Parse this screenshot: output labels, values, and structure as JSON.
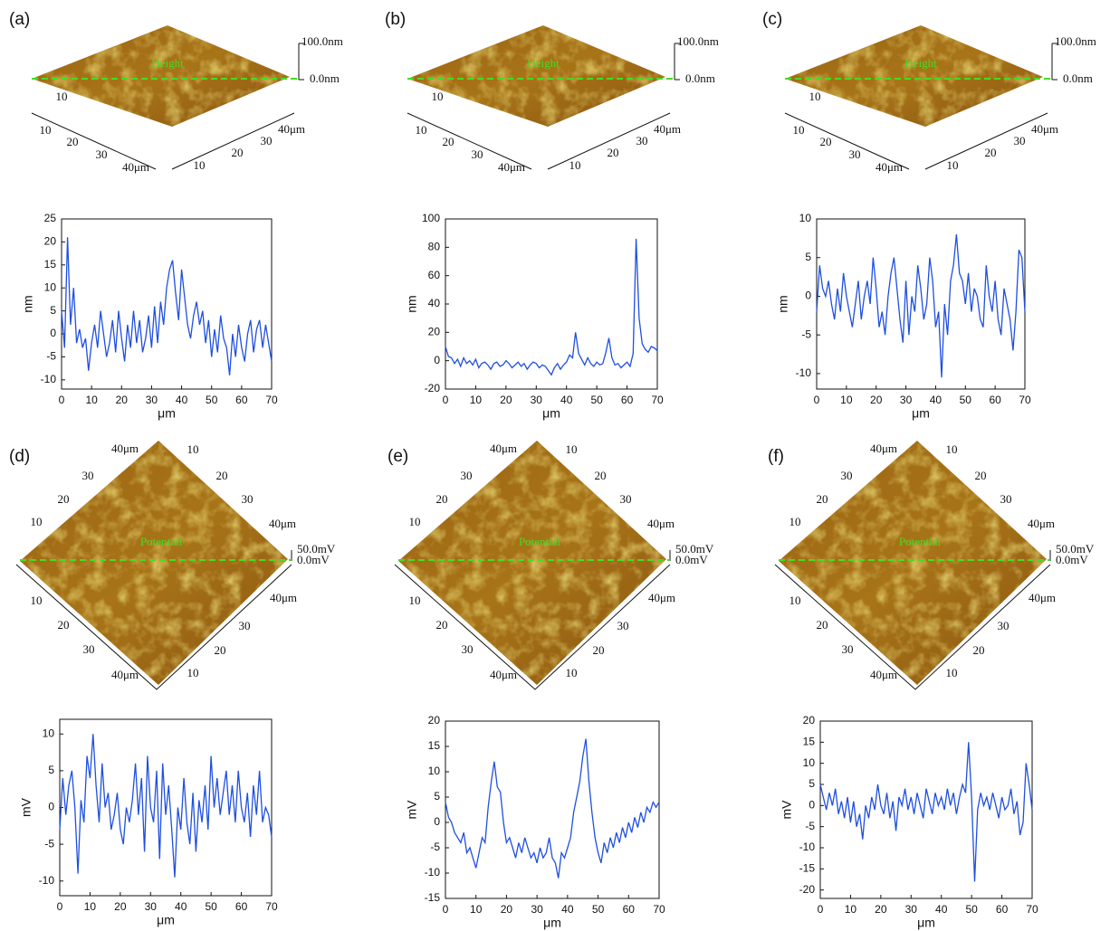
{
  "surfaces": [
    {
      "label": "(a)",
      "quantity": "Height",
      "scale_top": "100.0nm",
      "scale_bottom": "0.0nm",
      "ticks": [
        "10",
        "20",
        "30",
        "40μm"
      ]
    },
    {
      "label": "(b)",
      "quantity": "Height",
      "scale_top": "100.0nm",
      "scale_bottom": "0.0nm",
      "ticks": [
        "10",
        "20",
        "30",
        "40μm"
      ]
    },
    {
      "label": "(c)",
      "quantity": "Height",
      "scale_top": "100.0nm",
      "scale_bottom": "0.0nm",
      "ticks": [
        "10",
        "20",
        "30",
        "40μm"
      ]
    },
    {
      "label": "(d)",
      "quantity": "Potential",
      "scale_top": "50.0mV",
      "scale_bottom": "0.0mV",
      "ticks": [
        "10",
        "20",
        "30",
        "40μm"
      ]
    },
    {
      "label": "(e)",
      "quantity": "Potential",
      "scale_top": "50.0mV",
      "scale_bottom": "0.0mV",
      "ticks": [
        "10",
        "20",
        "30",
        "40μm"
      ]
    },
    {
      "label": "(f)",
      "quantity": "Potential",
      "scale_top": "50.0mV",
      "scale_bottom": "0.0mV",
      "ticks": [
        "10",
        "20",
        "30",
        "40μm"
      ]
    }
  ],
  "chart_data": [
    {
      "type": "line",
      "xlabel": "μm",
      "ylabel": "nm",
      "xlim": [
        0,
        70
      ],
      "xticks": [
        0,
        10,
        20,
        30,
        40,
        50,
        60,
        70
      ],
      "ylim": [
        -12,
        25
      ],
      "yticks": [
        -10,
        -5,
        0,
        5,
        10,
        15,
        20,
        25
      ],
      "x": [
        0,
        1,
        2,
        3,
        4,
        5,
        6,
        7,
        8,
        9,
        10,
        11,
        12,
        13,
        14,
        15,
        16,
        17,
        18,
        19,
        20,
        21,
        22,
        23,
        24,
        25,
        26,
        27,
        28,
        29,
        30,
        31,
        32,
        33,
        34,
        35,
        36,
        37,
        38,
        39,
        40,
        41,
        42,
        43,
        44,
        45,
        46,
        47,
        48,
        49,
        50,
        51,
        52,
        53,
        54,
        55,
        56,
        57,
        58,
        59,
        60,
        61,
        62,
        63,
        64,
        65,
        66,
        67,
        68,
        69,
        70
      ],
      "series": [
        {
          "color": "#1f4fe0",
          "values": [
            5,
            -3,
            21,
            2,
            10,
            -2,
            1,
            -3,
            -1,
            -8,
            -2,
            2,
            -3,
            5,
            0,
            -5,
            -2,
            3,
            -4,
            5,
            -1,
            -6,
            2,
            -3,
            5,
            -2,
            3,
            -4,
            -1,
            4,
            -3,
            6,
            -2,
            7,
            2,
            10,
            14,
            16,
            9,
            3,
            14,
            8,
            2,
            -1,
            4,
            7,
            2,
            5,
            -2,
            3,
            -5,
            1,
            -4,
            4,
            -1,
            -3,
            -9,
            0,
            -5,
            2,
            -3,
            -6,
            0,
            3,
            -4,
            1,
            3,
            -3,
            2,
            -2,
            -6
          ]
        }
      ]
    },
    {
      "type": "line",
      "xlabel": "μm",
      "ylabel": "nm",
      "xlim": [
        0,
        70
      ],
      "xticks": [
        0,
        10,
        20,
        30,
        40,
        50,
        60,
        70
      ],
      "ylim": [
        -20,
        100
      ],
      "yticks": [
        -20,
        0,
        20,
        40,
        60,
        80,
        100
      ],
      "x": [
        0,
        1,
        2,
        3,
        4,
        5,
        6,
        7,
        8,
        9,
        10,
        11,
        12,
        13,
        14,
        15,
        16,
        17,
        18,
        19,
        20,
        21,
        22,
        23,
        24,
        25,
        26,
        27,
        28,
        29,
        30,
        31,
        32,
        33,
        34,
        35,
        36,
        37,
        38,
        39,
        40,
        41,
        42,
        43,
        44,
        45,
        46,
        47,
        48,
        49,
        50,
        51,
        52,
        53,
        54,
        55,
        56,
        57,
        58,
        59,
        60,
        61,
        62,
        63,
        64,
        65,
        66,
        67,
        68,
        69,
        70
      ],
      "series": [
        {
          "color": "#1f4fe0",
          "values": [
            10,
            3,
            2,
            -2,
            1,
            -4,
            2,
            -2,
            0,
            -3,
            1,
            -5,
            -2,
            -1,
            -3,
            -6,
            -2,
            -1,
            -4,
            -3,
            0,
            -2,
            -5,
            -3,
            -1,
            -4,
            -2,
            -6,
            -3,
            -1,
            -2,
            -5,
            -3,
            -4,
            -7,
            -10,
            -5,
            -2,
            -6,
            -3,
            -1,
            4,
            2,
            20,
            5,
            1,
            -3,
            2,
            -2,
            -4,
            -1,
            -3,
            -2,
            6,
            16,
            2,
            -3,
            -2,
            -5,
            -3,
            -1,
            -4,
            5,
            86,
            30,
            12,
            8,
            6,
            10,
            9,
            7
          ]
        }
      ]
    },
    {
      "type": "line",
      "xlabel": "μm",
      "ylabel": "nm",
      "xlim": [
        0,
        70
      ],
      "xticks": [
        0,
        10,
        20,
        30,
        40,
        50,
        60,
        70
      ],
      "ylim": [
        -12,
        10
      ],
      "yticks": [
        -10,
        -5,
        0,
        5,
        10
      ],
      "x": [
        0,
        1,
        2,
        3,
        4,
        5,
        6,
        7,
        8,
        9,
        10,
        11,
        12,
        13,
        14,
        15,
        16,
        17,
        18,
        19,
        20,
        21,
        22,
        23,
        24,
        25,
        26,
        27,
        28,
        29,
        30,
        31,
        32,
        33,
        34,
        35,
        36,
        37,
        38,
        39,
        40,
        41,
        42,
        43,
        44,
        45,
        46,
        47,
        48,
        49,
        50,
        51,
        52,
        53,
        54,
        55,
        56,
        57,
        58,
        59,
        60,
        61,
        62,
        63,
        64,
        65,
        66,
        67,
        68,
        69,
        70
      ],
      "series": [
        {
          "color": "#1f4fe0",
          "values": [
            -2,
            4,
            1,
            0,
            2,
            -1,
            -3,
            1,
            -2,
            3,
            0,
            -2,
            -4,
            -1,
            2,
            -3,
            0,
            2,
            -1,
            5,
            1,
            -4,
            -2,
            -5,
            0,
            3,
            5,
            1,
            -3,
            -6,
            2,
            -5,
            0,
            -2,
            4,
            1,
            -3,
            -1,
            5,
            2,
            -4,
            -2,
            -10.5,
            -1,
            -5,
            2,
            4,
            8,
            3,
            2,
            -1,
            3,
            -2,
            1,
            0,
            -3,
            -4,
            4,
            0,
            -2,
            2,
            -3,
            -5,
            1,
            -1,
            -3,
            -7,
            -2,
            6,
            5,
            -2
          ]
        }
      ]
    },
    {
      "type": "line",
      "xlabel": "μm",
      "ylabel": "mV",
      "xlim": [
        0,
        70
      ],
      "xticks": [
        0,
        10,
        20,
        30,
        40,
        50,
        60,
        70
      ],
      "ylim": [
        -12,
        12
      ],
      "yticks": [
        -10,
        -5,
        0,
        5,
        10
      ],
      "x": [
        0,
        1,
        2,
        3,
        4,
        5,
        6,
        7,
        8,
        9,
        10,
        11,
        12,
        13,
        14,
        15,
        16,
        17,
        18,
        19,
        20,
        21,
        22,
        23,
        24,
        25,
        26,
        27,
        28,
        29,
        30,
        31,
        32,
        33,
        34,
        35,
        36,
        37,
        38,
        39,
        40,
        41,
        42,
        43,
        44,
        45,
        46,
        47,
        48,
        49,
        50,
        51,
        52,
        53,
        54,
        55,
        56,
        57,
        58,
        59,
        60,
        61,
        62,
        63,
        64,
        65,
        66,
        67,
        68,
        69,
        70
      ],
      "series": [
        {
          "color": "#1f4fe0",
          "values": [
            -3,
            4,
            -1,
            3,
            5,
            0,
            -9,
            1,
            -2,
            7,
            4,
            10,
            3,
            -2,
            6,
            0,
            2,
            -3,
            -1,
            2,
            -3,
            -5,
            0,
            -2,
            1,
            6,
            -1,
            4,
            -6,
            7,
            0,
            -2,
            5,
            -7,
            6,
            -1,
            3,
            -3,
            -9.5,
            0,
            -3,
            4,
            -2,
            -5,
            2,
            -6,
            1,
            -2,
            3,
            -3,
            7,
            0,
            4,
            -1,
            2,
            5,
            -1,
            3,
            -2,
            5,
            0,
            -2,
            2,
            -4,
            3,
            -1,
            5,
            -2,
            0,
            -1,
            -4
          ]
        }
      ]
    },
    {
      "type": "line",
      "xlabel": "μm",
      "ylabel": "mV",
      "xlim": [
        0,
        70
      ],
      "xticks": [
        0,
        10,
        20,
        30,
        40,
        50,
        60,
        70
      ],
      "ylim": [
        -15,
        20
      ],
      "yticks": [
        -15,
        -10,
        -5,
        0,
        5,
        10,
        15,
        20
      ],
      "x": [
        0,
        1,
        2,
        3,
        4,
        5,
        6,
        7,
        8,
        9,
        10,
        11,
        12,
        13,
        14,
        15,
        16,
        17,
        18,
        19,
        20,
        21,
        22,
        23,
        24,
        25,
        26,
        27,
        28,
        29,
        30,
        31,
        32,
        33,
        34,
        35,
        36,
        37,
        38,
        39,
        40,
        41,
        42,
        43,
        44,
        45,
        46,
        47,
        48,
        49,
        50,
        51,
        52,
        53,
        54,
        55,
        56,
        57,
        58,
        59,
        60,
        61,
        62,
        63,
        64,
        65,
        66,
        67,
        68,
        69,
        70
      ],
      "series": [
        {
          "color": "#1f4fe0",
          "values": [
            4,
            1,
            0,
            -2,
            -3,
            -4,
            -2,
            -6,
            -5,
            -7,
            -9,
            -6,
            -3,
            -4,
            3,
            8,
            12,
            7,
            6,
            0,
            -4,
            -3,
            -5,
            -7,
            -4,
            -6,
            -3,
            -5,
            -7,
            -6,
            -8,
            -5,
            -7,
            -6,
            -3,
            -7,
            -8,
            -11,
            -6,
            -7,
            -5,
            -3,
            2,
            5,
            8,
            13,
            16.5,
            8,
            2,
            -3,
            -6,
            -8,
            -4,
            -6,
            -3,
            -5,
            -2,
            -4,
            -1,
            -3,
            0,
            -2,
            1,
            -1,
            2,
            0,
            3,
            2,
            4,
            3,
            4
          ]
        }
      ]
    },
    {
      "type": "line",
      "xlabel": "μm",
      "ylabel": "mV",
      "xlim": [
        0,
        70
      ],
      "xticks": [
        0,
        10,
        20,
        30,
        40,
        50,
        60,
        70
      ],
      "ylim": [
        -22,
        20
      ],
      "yticks": [
        -20,
        -15,
        -10,
        -5,
        0,
        5,
        10,
        15,
        20
      ],
      "x": [
        0,
        1,
        2,
        3,
        4,
        5,
        6,
        7,
        8,
        9,
        10,
        11,
        12,
        13,
        14,
        15,
        16,
        17,
        18,
        19,
        20,
        21,
        22,
        23,
        24,
        25,
        26,
        27,
        28,
        29,
        30,
        31,
        32,
        33,
        34,
        35,
        36,
        37,
        38,
        39,
        40,
        41,
        42,
        43,
        44,
        45,
        46,
        47,
        48,
        49,
        50,
        51,
        52,
        53,
        54,
        55,
        56,
        57,
        58,
        59,
        60,
        61,
        62,
        63,
        64,
        65,
        66,
        67,
        68,
        69,
        70
      ],
      "series": [
        {
          "color": "#1f4fe0",
          "values": [
            5,
            2,
            -1,
            3,
            0,
            4,
            -2,
            1,
            -3,
            2,
            -4,
            1,
            -5,
            -2,
            -8,
            0,
            -3,
            2,
            -1,
            5,
            0,
            -2,
            3,
            -3,
            1,
            -6,
            2,
            0,
            4,
            -1,
            2,
            -2,
            3,
            0,
            -3,
            4,
            1,
            -2,
            3,
            0,
            2,
            -1,
            4,
            0,
            3,
            -2,
            2,
            5,
            3,
            15,
            2,
            -18,
            -1,
            3,
            0,
            2,
            -1,
            3,
            0,
            -3,
            2,
            -1,
            0,
            4,
            -2,
            1,
            -7,
            -4,
            10,
            5,
            -1
          ]
        }
      ]
    }
  ]
}
